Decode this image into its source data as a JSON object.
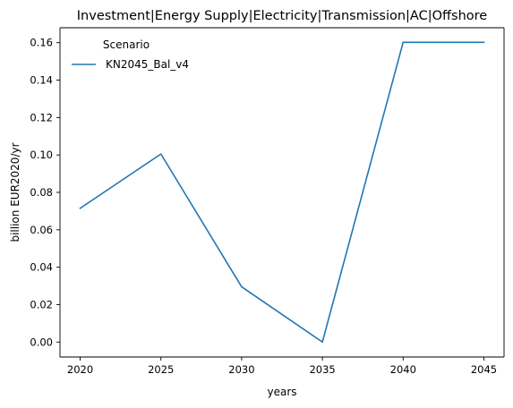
{
  "chart_data": {
    "type": "line",
    "title": "Investment|Energy Supply|Electricity|Transmission|AC|Offshore",
    "xlabel": "years",
    "ylabel": "billion EUR2020/yr",
    "x": [
      2020,
      2025,
      2030,
      2035,
      2040,
      2045
    ],
    "x_ticks": [
      "2020",
      "2025",
      "2030",
      "2035",
      "2040",
      "2045"
    ],
    "y_ticks": [
      "0.00",
      "0.02",
      "0.04",
      "0.06",
      "0.08",
      "0.10",
      "0.12",
      "0.14",
      "0.16"
    ],
    "xlim": [
      2018.75,
      2046.25
    ],
    "ylim": [
      -0.008,
      0.168
    ],
    "grid": false,
    "legend": {
      "title": "Scenario",
      "placement": "top-left"
    },
    "series": [
      {
        "name": "KN2045_Bal_v4",
        "color": "#1f77b4",
        "values": [
          0.0715,
          0.1005,
          0.0295,
          0.0,
          0.1602,
          0.1602
        ]
      }
    ]
  }
}
